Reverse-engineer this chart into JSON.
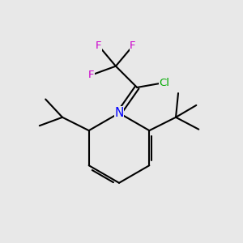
{
  "background_color": "#e8e8e8",
  "atom_colors": {
    "C": "#000000",
    "N": "#0000FF",
    "F": "#CC00CC",
    "Cl": "#00AA00"
  },
  "bond_color": "#000000",
  "bond_width": 1.5,
  "figsize": [
    3.0,
    3.0
  ],
  "dpi": 100,
  "font_size": 9.5
}
